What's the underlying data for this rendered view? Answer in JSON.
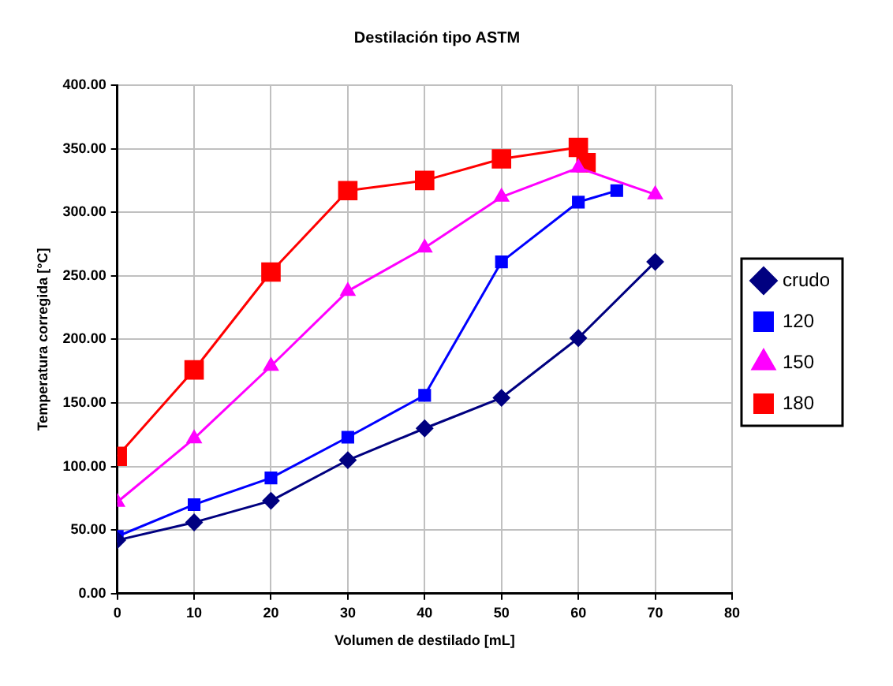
{
  "chart_data": {
    "type": "line",
    "title": "Destilación tipo ASTM",
    "xlabel": "Volumen de destilado [mL]",
    "ylabel": "Temperatura corregida [°C]",
    "xlim": [
      0,
      80
    ],
    "xticks": [
      {
        "value": 0,
        "label": "0"
      },
      {
        "value": 10,
        "label": "10"
      },
      {
        "value": 20,
        "label": "20"
      },
      {
        "value": 30,
        "label": "30"
      },
      {
        "value": 40,
        "label": "40"
      },
      {
        "value": 50,
        "label": "50"
      },
      {
        "value": 60,
        "label": "60"
      },
      {
        "value": 70,
        "label": "70"
      },
      {
        "value": 80,
        "label": "80"
      }
    ],
    "ylim": [
      0,
      400
    ],
    "yticks": [
      {
        "value": 0,
        "label": "0.00"
      },
      {
        "value": 50,
        "label": "50.00"
      },
      {
        "value": 100,
        "label": "100.00"
      },
      {
        "value": 150,
        "label": "150.00"
      },
      {
        "value": 200,
        "label": "200.00"
      },
      {
        "value": 250,
        "label": "250.00"
      },
      {
        "value": 300,
        "label": "300.00"
      },
      {
        "value": 350,
        "label": "350.00"
      },
      {
        "value": 400,
        "label": "400.00"
      }
    ],
    "grid": true,
    "legend": "right",
    "line_style": "solid",
    "series": [
      {
        "name": "crudo",
        "color": "#000080",
        "marker": "diamond",
        "x": [
          0,
          10,
          20,
          30,
          40,
          50,
          60,
          70
        ],
        "values": [
          42,
          56,
          73,
          105,
          130,
          154,
          201,
          261
        ]
      },
      {
        "name": "120",
        "color": "#0000ff",
        "marker": "square",
        "x": [
          0,
          10,
          20,
          30,
          40,
          50,
          60,
          65
        ],
        "values": [
          45,
          70,
          91,
          123,
          156,
          261,
          308,
          317
        ]
      },
      {
        "name": "150",
        "color": "#ff00ff",
        "marker": "triangle",
        "x": [
          0,
          10,
          20,
          30,
          40,
          50,
          60,
          70
        ],
        "values": [
          72,
          122,
          179,
          238,
          272,
          312,
          335,
          314
        ]
      },
      {
        "name": "180",
        "color": "#ff0000",
        "marker": "square",
        "x": [
          0,
          10,
          20,
          30,
          40,
          50,
          60,
          61
        ],
        "values": [
          108,
          176,
          253,
          317,
          325,
          342,
          351,
          339
        ]
      }
    ]
  }
}
